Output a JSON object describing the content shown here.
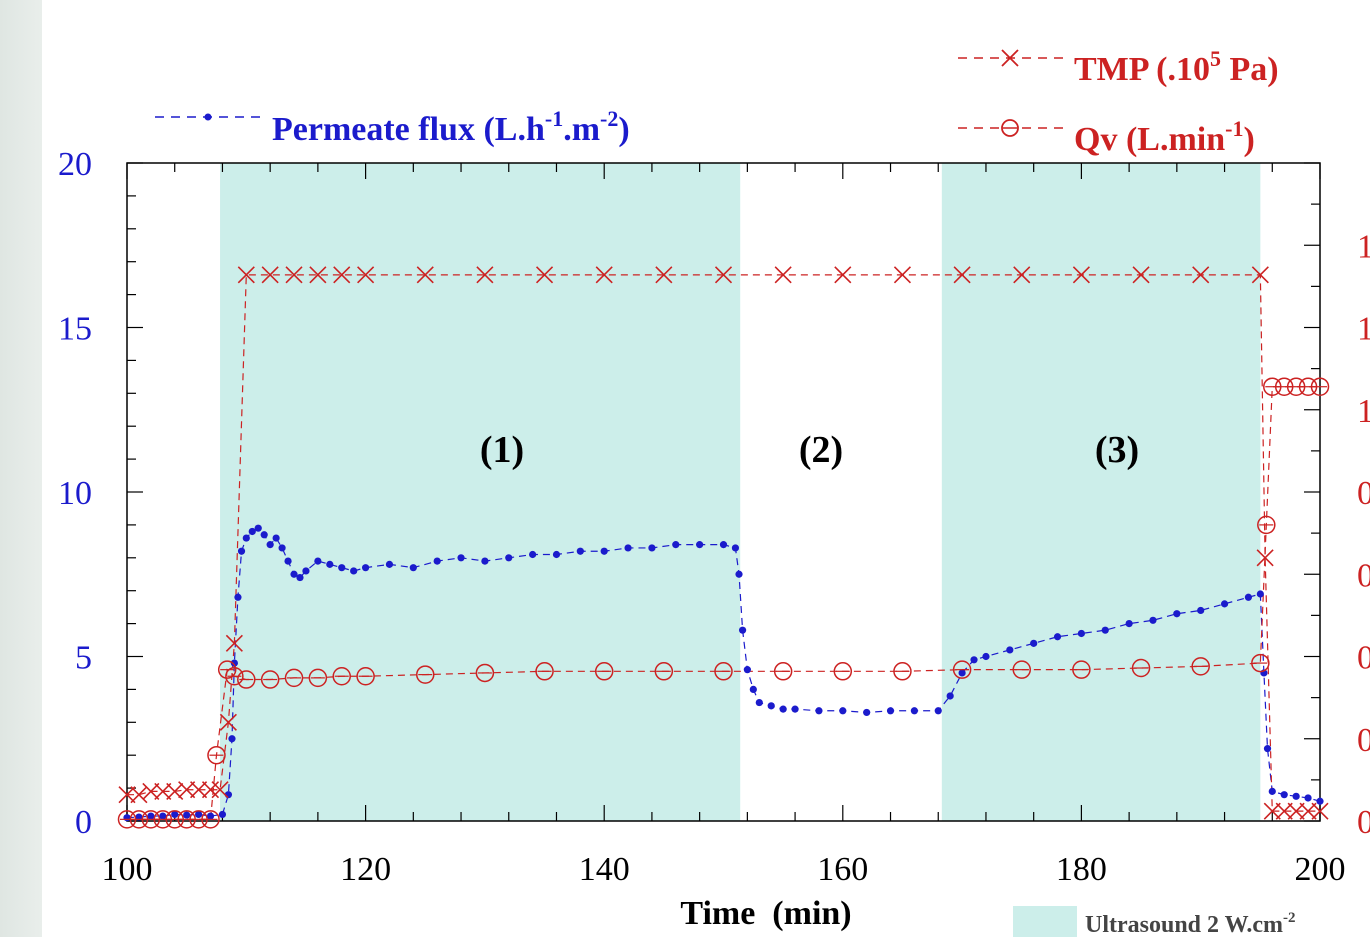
{
  "chart_data": {
    "type": "line",
    "xlabel": "Time  (min)",
    "xlim": [
      100,
      200
    ],
    "x_ticks": [
      "100",
      "120",
      "140",
      "160",
      "180",
      "200"
    ],
    "y_left_lim": [
      0,
      20
    ],
    "y_left_ticks": [
      "0",
      "5",
      "10",
      "15",
      "20"
    ],
    "y_right_ticks_visible": [
      "0",
      "0",
      "0",
      "0",
      "0",
      "1",
      "1",
      "1"
    ],
    "region_labels": [
      "(1)",
      "(2)",
      "(3)"
    ],
    "ultrasound_regions": [
      [
        107.8,
        151.4
      ],
      [
        168.3,
        195.0
      ]
    ],
    "ultrasound_legend": {
      "text": "Ultrasound 2 W.cm",
      "sup": "-2"
    },
    "colors": {
      "flux": "#1b1bcc",
      "tmp_qv": "#cc2222",
      "ultrasound": "#cceeea"
    },
    "series": [
      {
        "name": "Permeate flux (L.h-1.m-2)",
        "legend_text": "Permeate flux (L.h",
        "legend_sup1": "-1",
        "legend_mid": ".m",
        "legend_sup2": "-2",
        "legend_end": ")",
        "axis": "left",
        "marker": "dot",
        "x": [
          100,
          101,
          102,
          103,
          104,
          105,
          106,
          107,
          108,
          108.5,
          108.8,
          109,
          109.3,
          109.6,
          110,
          110.5,
          111,
          111.5,
          112,
          112.5,
          113,
          113.5,
          114,
          114.5,
          115,
          116,
          117,
          118,
          119,
          120,
          122,
          124,
          126,
          128,
          130,
          132,
          134,
          136,
          138,
          140,
          142,
          144,
          146,
          148,
          150,
          151,
          151.3,
          151.6,
          152,
          152.5,
          153,
          154,
          155,
          156,
          158,
          160,
          162,
          164,
          166,
          168,
          169,
          170,
          171,
          172,
          174,
          176,
          178,
          180,
          182,
          184,
          186,
          188,
          190,
          192,
          194,
          195,
          195.3,
          195.6,
          196,
          197,
          198,
          199,
          200
        ],
        "values": [
          0.1,
          0.12,
          0.15,
          0.15,
          0.2,
          0.18,
          0.2,
          0.15,
          0.2,
          0.8,
          2.5,
          4.8,
          6.8,
          8.2,
          8.6,
          8.8,
          8.9,
          8.7,
          8.4,
          8.6,
          8.3,
          7.9,
          7.5,
          7.4,
          7.6,
          7.9,
          7.8,
          7.7,
          7.6,
          7.7,
          7.8,
          7.7,
          7.9,
          8.0,
          7.9,
          8.0,
          8.1,
          8.1,
          8.2,
          8.2,
          8.3,
          8.3,
          8.4,
          8.4,
          8.4,
          8.3,
          7.5,
          5.8,
          4.6,
          4.0,
          3.6,
          3.5,
          3.4,
          3.4,
          3.35,
          3.35,
          3.3,
          3.35,
          3.35,
          3.35,
          3.8,
          4.5,
          4.9,
          5.0,
          5.2,
          5.4,
          5.6,
          5.7,
          5.8,
          6.0,
          6.1,
          6.3,
          6.4,
          6.6,
          6.8,
          6.9,
          4.5,
          2.2,
          0.9,
          0.8,
          0.75,
          0.7,
          0.6
        ]
      },
      {
        "name": "TMP (.10^5 Pa)",
        "legend_text": "TMP (.10",
        "legend_sup": "5",
        "legend_end": " Pa)",
        "axis": "right",
        "marker": "x",
        "x": [
          100,
          101,
          102,
          103,
          104,
          105,
          106,
          107,
          107.8,
          108.5,
          109,
          110,
          112,
          114,
          116,
          118,
          120,
          125,
          130,
          135,
          140,
          145,
          150,
          155,
          160,
          165,
          170,
          175,
          180,
          185,
          190,
          195,
          195.4,
          196,
          197,
          198,
          199,
          200
        ],
        "values": [
          0.8,
          0.8,
          0.9,
          0.9,
          0.9,
          0.95,
          0.95,
          0.95,
          0.95,
          3.0,
          5.4,
          16.6,
          16.6,
          16.6,
          16.6,
          16.6,
          16.6,
          16.6,
          16.6,
          16.6,
          16.6,
          16.6,
          16.6,
          16.6,
          16.6,
          16.6,
          16.6,
          16.6,
          16.6,
          16.6,
          16.6,
          16.6,
          8.0,
          0.3,
          0.3,
          0.3,
          0.3,
          0.3
        ]
      },
      {
        "name": "Qv (L.min-1)",
        "legend_text": "Qv (L.min",
        "legend_sup": "-1",
        "legend_end": ")",
        "axis": "right",
        "marker": "circle",
        "x": [
          100,
          101,
          102,
          103,
          104,
          105,
          106,
          107,
          107.5,
          108.4,
          109,
          110,
          112,
          114,
          116,
          118,
          120,
          125,
          130,
          135,
          140,
          145,
          150,
          155,
          160,
          165,
          170,
          175,
          180,
          185,
          190,
          195,
          195.5,
          196,
          197,
          198,
          199,
          200
        ],
        "values": [
          0.05,
          0.05,
          0.05,
          0.05,
          0.05,
          0.05,
          0.05,
          0.05,
          2.0,
          4.6,
          4.4,
          4.3,
          4.3,
          4.35,
          4.35,
          4.4,
          4.4,
          4.45,
          4.5,
          4.55,
          4.55,
          4.55,
          4.55,
          4.55,
          4.55,
          4.55,
          4.6,
          4.6,
          4.6,
          4.65,
          4.7,
          4.8,
          9.0,
          13.2,
          13.2,
          13.2,
          13.2,
          13.2
        ]
      }
    ]
  }
}
